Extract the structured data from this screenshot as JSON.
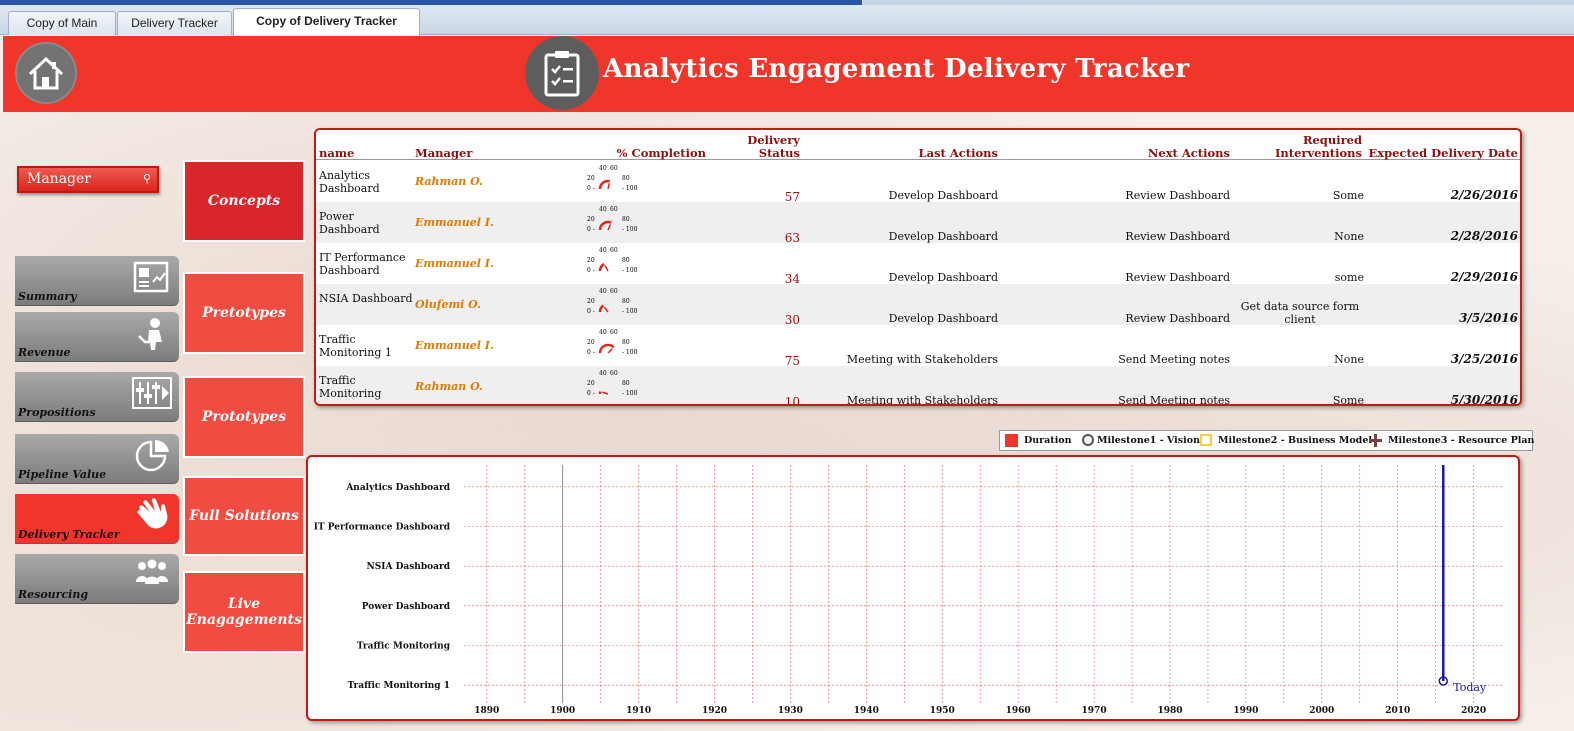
{
  "tabs": [
    {
      "label": "Copy of Main",
      "active": false
    },
    {
      "label": "Delivery Tracker",
      "active": false
    },
    {
      "label": "Copy of Delivery Tracker",
      "active": true
    }
  ],
  "header": {
    "title": "Analytics Engagement Delivery Tracker",
    "home_icon": "home-icon",
    "clipboard_icon": "clipboard-check-icon",
    "bg_color": "#f0362a"
  },
  "slicer": {
    "label": "Manager",
    "icon": "filter-icon"
  },
  "nav": [
    {
      "label": "Summary",
      "icon": "report-icon"
    },
    {
      "label": "Revenue",
      "icon": "person-laptop-icon"
    },
    {
      "label": "Propositions",
      "icon": "sliders-icon"
    },
    {
      "label": "Pipeline Value",
      "icon": "pie-chart-icon"
    },
    {
      "label": "Delivery Tracker",
      "icon": "hand-icon",
      "active": true
    },
    {
      "label": "Resourcing",
      "icon": "people-icon"
    }
  ],
  "categories": [
    {
      "label": "Concepts"
    },
    {
      "label": "Pretotypes"
    },
    {
      "label": "Prototypes"
    },
    {
      "label": "Full Solutions"
    },
    {
      "label": "Live Enagagements"
    }
  ],
  "table": {
    "headers": {
      "name": "name",
      "manager": "Manager",
      "completion": "% Completion",
      "status": "Delivery Status",
      "last": "Last Actions",
      "next": "Next Actions",
      "req": "Required Interventions",
      "date": "Expected Delivery Date"
    },
    "gauge_ticks": {
      "t20": "20",
      "t40": "40",
      "t60": "60",
      "t80": "80",
      "t0": "0 -",
      "t100": "- 100"
    },
    "rows": [
      {
        "name": "Analytics Dashboard",
        "manager": "Rahman O.",
        "status": "57",
        "last": "Develop Dashboard",
        "next": "Review Dashboard",
        "req": "Some",
        "date": "2/26/2016"
      },
      {
        "name": "Power Dashboard",
        "manager": "Emmanuel I.",
        "status": "63",
        "last": "Develop Dashboard",
        "next": "Review Dashboard",
        "req": "None",
        "date": "2/28/2016"
      },
      {
        "name": "IT Performance Dashboard",
        "manager": "Emmanuel I.",
        "status": "34",
        "last": "Develop Dashboard",
        "next": "Review Dashboard",
        "req": "some",
        "date": "2/29/2016"
      },
      {
        "name": "NSIA Dashboard",
        "manager": "Olufemi O.",
        "status": "30",
        "last": "Develop Dashboard",
        "next": "Review Dashboard",
        "req": "Get data source form client",
        "date": "3/5/2016"
      },
      {
        "name": "Traffic Monitoring 1",
        "manager": "Emmanuel I.",
        "status": "75",
        "last": "Meeting with Stakeholders",
        "next": "Send Meeting notes",
        "req": "None",
        "date": "3/25/2016"
      },
      {
        "name": "Traffic Monitoring",
        "manager": "Rahman O.",
        "status": "10",
        "last": "Meeting with Stakeholders",
        "next": "Send Meeting notes",
        "req": "Some",
        "date": "5/30/2016"
      }
    ]
  },
  "legend": {
    "duration": "Duration",
    "m1": "Milestone1 - Vision",
    "m2": "Milestone2 - Business Model",
    "m3": "Milestone3 - Resource Plan"
  },
  "chart_data": {
    "type": "bar",
    "categories": [
      "Analytics Dashboard",
      "IT Performance Dashboard",
      "NSIA Dashboard",
      "Power Dashboard",
      "Traffic Monitoring",
      "Traffic Monitoring 1"
    ],
    "x_ticks": [
      "1890",
      "1900",
      "1910",
      "1920",
      "1930",
      "1940",
      "1950",
      "1960",
      "1970",
      "1980",
      "1990",
      "2000",
      "2010",
      "2020"
    ],
    "xlim": [
      1887,
      2024
    ],
    "today_value": 2016,
    "today_label": "Today",
    "grid": true,
    "colors": {
      "grid": "#f06060",
      "today": "#1a1aa0",
      "duration": "#f0362a"
    }
  }
}
